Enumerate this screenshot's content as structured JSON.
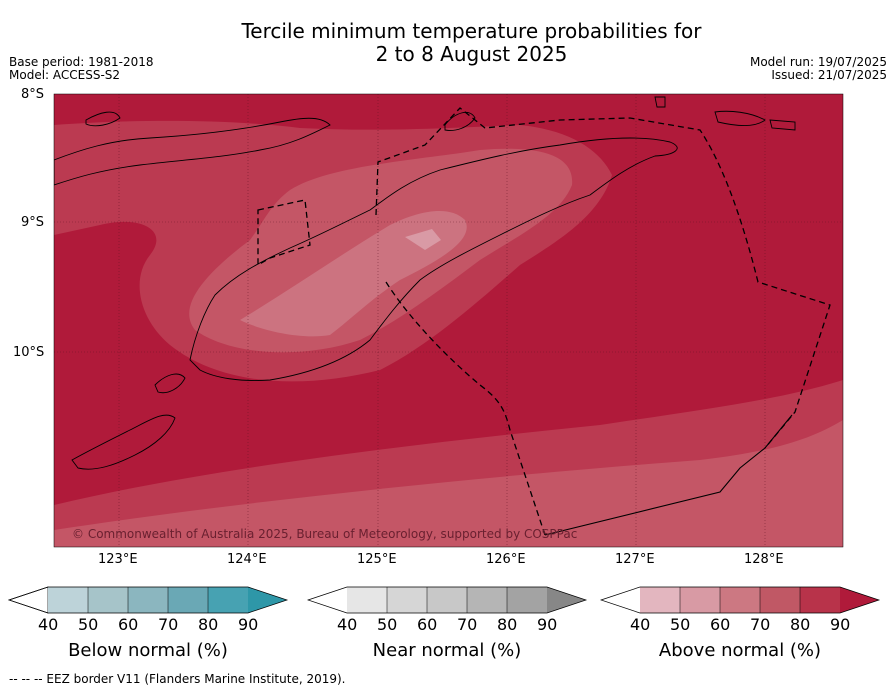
{
  "title": {
    "line1": "Tercile minimum temperature probabilities for",
    "line2": "2 to 8 August 2025"
  },
  "meta_left": {
    "base_period": "Base period: 1981-2018",
    "model": "Model: ACCESS-S2"
  },
  "meta_right": {
    "model_run": "Model run: 19/07/2025",
    "issued": "Issued: 21/07/2025"
  },
  "latitude_labels": [
    "8°S",
    "9°S",
    "10°S"
  ],
  "longitude_labels": [
    "123°E",
    "124°E",
    "125°E",
    "126°E",
    "127°E",
    "128°E"
  ],
  "credit": "© Commonwealth of Australia 2025, Bureau of Meteorology, supported by COSPPac",
  "colorbars": [
    {
      "label": "Below normal (%)",
      "ticks": [
        "40",
        "50",
        "60",
        "70",
        "80",
        "90"
      ],
      "colors": [
        "#ffffff",
        "#bdd3d9",
        "#a6c4c9",
        "#8bb6bf",
        "#6aa8b5",
        "#47a2b2",
        "#2e97a8"
      ]
    },
    {
      "label": "Near normal (%)",
      "ticks": [
        "40",
        "50",
        "60",
        "70",
        "80",
        "90"
      ],
      "colors": [
        "#ffffff",
        "#e6e6e6",
        "#d6d6d6",
        "#c8c8c8",
        "#b5b5b5",
        "#a3a3a3",
        "#878787"
      ]
    },
    {
      "label": "Above normal (%)",
      "ticks": [
        "40",
        "50",
        "60",
        "70",
        "80",
        "90"
      ],
      "colors": [
        "#ffffff",
        "#e3b6bf",
        "#d89aa4",
        "#cc7882",
        "#c05865",
        "#b8334a",
        "#b01a3a"
      ]
    }
  ],
  "footer": "--  --  -- EEZ border V11 (Flanders Marine Institute, 2019).",
  "map_colors": {
    "band_80_90": "#b01a3a",
    "band_70_80": "#bb3a51",
    "band_60_70": "#c45666",
    "band_50_60": "#cc7380",
    "band_40_50": "#d99aa5"
  }
}
